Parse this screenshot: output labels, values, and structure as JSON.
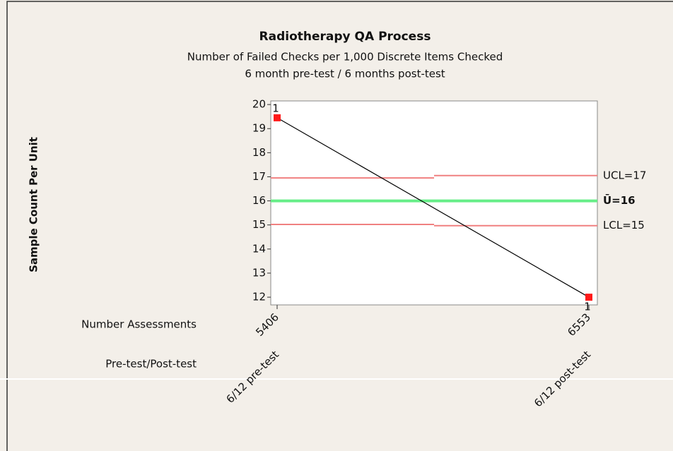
{
  "chart_data": {
    "type": "line",
    "title": "Radiotherapy QA Process",
    "subtitle": [
      "Number of Failed Checks per 1,000 Discrete Items Checked",
      "6 month pre-test / 6 months post-test"
    ],
    "y_label": "Sample Count Per Unit",
    "x_rows": [
      {
        "label": "Number Assessments",
        "values": [
          "5406",
          "6553"
        ]
      },
      {
        "label": "Pre-test/Post-test",
        "values": [
          "6/12 pre-test",
          "6/12 post-test"
        ]
      }
    ],
    "values": [
      19.45,
      12.0
    ],
    "color": "#ff1a1a",
    "line_color": "#000000",
    "point_labels": [
      "1",
      "1"
    ],
    "center": {
      "label": "Ū=16",
      "values": [
        16,
        16
      ],
      "color": "#66ee88"
    },
    "limits": [
      {
        "label": "UCL=17",
        "values": [
          16.95,
          17.05
        ],
        "color": "#f08080"
      },
      {
        "label": "LCL=15",
        "values": [
          15.02,
          14.97
        ],
        "color": "#f08080"
      }
    ],
    "ylim": [
      11.68,
      20.15
    ],
    "yticks": [
      12,
      13,
      14,
      15,
      16,
      17,
      18,
      19,
      20
    ]
  }
}
